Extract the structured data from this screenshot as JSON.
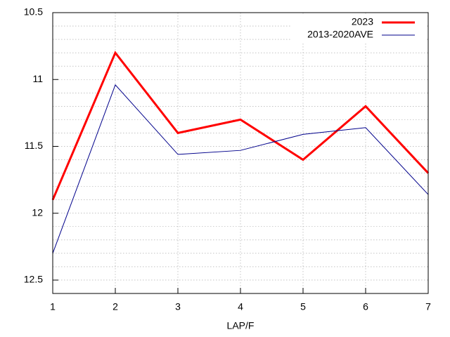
{
  "chart_data": {
    "type": "line",
    "xlabel": "LAP/F",
    "x": [
      1,
      2,
      3,
      4,
      5,
      6,
      7
    ],
    "series": [
      {
        "name": "2023",
        "color": "#ff0000",
        "width": 3,
        "values": [
          11.9,
          10.8,
          11.4,
          11.3,
          11.6,
          11.2,
          11.7
        ]
      },
      {
        "name": "2013-2020AVE",
        "color": "#00008b",
        "width": 1,
        "values": [
          12.3,
          11.04,
          11.56,
          11.53,
          11.41,
          11.36,
          11.86
        ]
      }
    ],
    "xlim": [
      1,
      7
    ],
    "xticks": [
      1,
      2,
      3,
      4,
      5,
      6,
      7
    ],
    "ylim": [
      12.6,
      10.5
    ],
    "yticks": [
      10.5,
      11,
      11.5,
      12,
      12.5
    ],
    "y_minor_ticks": [
      10.6,
      10.7,
      10.8,
      10.9,
      11.1,
      11.2,
      11.3,
      11.4,
      11.6,
      11.7,
      11.8,
      11.9,
      12.1,
      12.2,
      12.3,
      12.4,
      12.6
    ],
    "y_inverted": true,
    "grid": true,
    "legend": "top-right"
  }
}
